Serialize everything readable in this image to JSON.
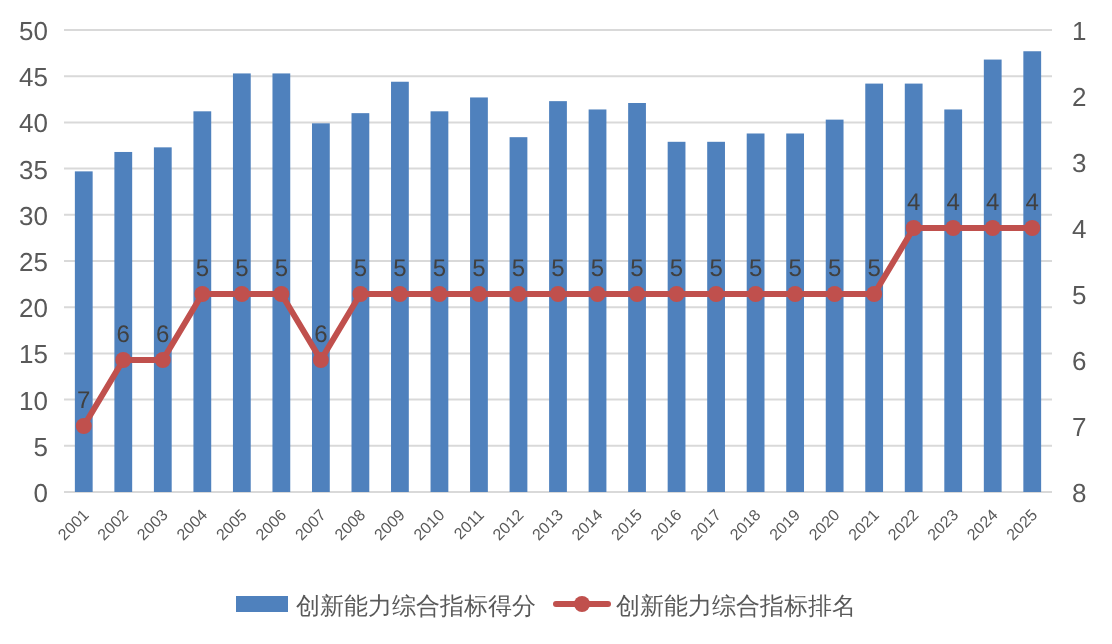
{
  "chart_data": {
    "type": "bar",
    "categories": [
      "2001",
      "2002",
      "2003",
      "2004",
      "2005",
      "2006",
      "2007",
      "2008",
      "2009",
      "2010",
      "2011",
      "2012",
      "2013",
      "2014",
      "2015",
      "2016",
      "2017",
      "2018",
      "2019",
      "2020",
      "2021",
      "2022",
      "2023",
      "2024",
      "2025"
    ],
    "series": [
      {
        "name": "创新能力综合指标得分",
        "color": "#4f81bd",
        "values": [
          34.7,
          36.8,
          37.3,
          41.2,
          45.3,
          45.3,
          39.9,
          41.0,
          44.4,
          41.2,
          42.7,
          38.4,
          42.3,
          41.4,
          42.1,
          37.9,
          37.9,
          38.8,
          38.8,
          40.3,
          44.2,
          44.2,
          41.4,
          46.8,
          47.7
        ]
      },
      {
        "name": "创新能力综合指标排名",
        "color": "#c0504d",
        "type": "line",
        "axis": "y2",
        "marker": "circle",
        "data_labels": true,
        "values": [
          7,
          6,
          6,
          5,
          5,
          5,
          6,
          5,
          5,
          5,
          5,
          5,
          5,
          5,
          5,
          5,
          5,
          5,
          5,
          5,
          5,
          4,
          4,
          4,
          4
        ]
      }
    ],
    "ylim": [
      0,
      50
    ],
    "yticks": [
      0,
      5,
      10,
      15,
      20,
      25,
      30,
      35,
      40,
      45,
      50
    ],
    "y2lim": [
      8,
      1
    ],
    "y2ticks": [
      1,
      2,
      3,
      4,
      5,
      6,
      7,
      8
    ],
    "grid": "y",
    "legend": "bottom"
  }
}
